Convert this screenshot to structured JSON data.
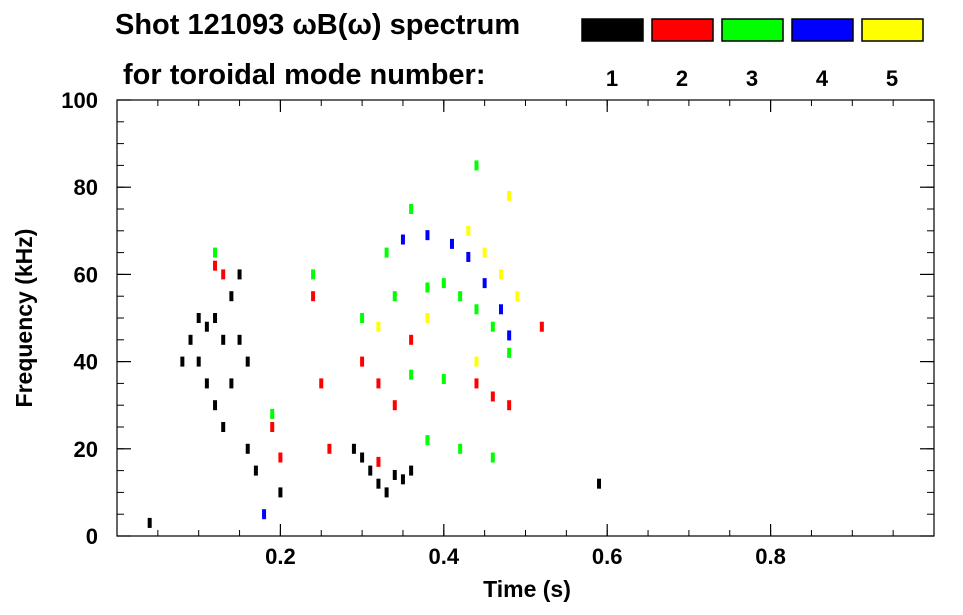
{
  "chart_data": {
    "type": "scatter",
    "title_line1": "Shot 121093 ωB(ω) spectrum",
    "title_line2": "for toroidal mode number:",
    "xlabel": "Time (s)",
    "ylabel": "Frequency (kHz)",
    "xlim": [
      0.0,
      1.0
    ],
    "ylim": [
      0,
      100
    ],
    "x_ticks": [
      {
        "value": 0.2,
        "label": "0.2"
      },
      {
        "value": 0.4,
        "label": "0.4"
      },
      {
        "value": 0.6,
        "label": "0.6"
      },
      {
        "value": 0.8,
        "label": "0.8"
      }
    ],
    "y_ticks": [
      {
        "value": 0,
        "label": "0"
      },
      {
        "value": 20,
        "label": "20"
      },
      {
        "value": 40,
        "label": "40"
      },
      {
        "value": 60,
        "label": "60"
      },
      {
        "value": 80,
        "label": "80"
      },
      {
        "value": 100,
        "label": "100"
      }
    ],
    "legend": {
      "placement": "top-right",
      "entries": [
        {
          "label": "1",
          "color": "#000000"
        },
        {
          "label": "2",
          "color": "#ff0000"
        },
        {
          "label": "3",
          "color": "#00ff00"
        },
        {
          "label": "4",
          "color": "#0000ff"
        },
        {
          "label": "5",
          "color": "#ffff00"
        }
      ]
    },
    "series": [
      {
        "mode": "1",
        "color": "#000000",
        "points": [
          {
            "x": 0.08,
            "y": 40
          },
          {
            "x": 0.09,
            "y": 45
          },
          {
            "x": 0.1,
            "y": 50
          },
          {
            "x": 0.1,
            "y": 40
          },
          {
            "x": 0.11,
            "y": 35
          },
          {
            "x": 0.11,
            "y": 48
          },
          {
            "x": 0.12,
            "y": 30
          },
          {
            "x": 0.12,
            "y": 50
          },
          {
            "x": 0.13,
            "y": 45
          },
          {
            "x": 0.13,
            "y": 25
          },
          {
            "x": 0.14,
            "y": 55
          },
          {
            "x": 0.14,
            "y": 35
          },
          {
            "x": 0.15,
            "y": 60
          },
          {
            "x": 0.15,
            "y": 45
          },
          {
            "x": 0.16,
            "y": 40
          },
          {
            "x": 0.16,
            "y": 20
          },
          {
            "x": 0.17,
            "y": 15
          },
          {
            "x": 0.2,
            "y": 10
          },
          {
            "x": 0.29,
            "y": 20
          },
          {
            "x": 0.3,
            "y": 18
          },
          {
            "x": 0.31,
            "y": 15
          },
          {
            "x": 0.32,
            "y": 12
          },
          {
            "x": 0.33,
            "y": 10
          },
          {
            "x": 0.34,
            "y": 14
          },
          {
            "x": 0.35,
            "y": 13
          },
          {
            "x": 0.36,
            "y": 15
          },
          {
            "x": 0.04,
            "y": 3
          },
          {
            "x": 0.59,
            "y": 12
          }
        ]
      },
      {
        "mode": "2",
        "color": "#ff0000",
        "points": [
          {
            "x": 0.12,
            "y": 62
          },
          {
            "x": 0.13,
            "y": 60
          },
          {
            "x": 0.19,
            "y": 25
          },
          {
            "x": 0.2,
            "y": 18
          },
          {
            "x": 0.24,
            "y": 55
          },
          {
            "x": 0.25,
            "y": 35
          },
          {
            "x": 0.26,
            "y": 20
          },
          {
            "x": 0.3,
            "y": 40
          },
          {
            "x": 0.32,
            "y": 35
          },
          {
            "x": 0.34,
            "y": 30
          },
          {
            "x": 0.36,
            "y": 45
          },
          {
            "x": 0.44,
            "y": 35
          },
          {
            "x": 0.46,
            "y": 32
          },
          {
            "x": 0.48,
            "y": 30
          },
          {
            "x": 0.52,
            "y": 48
          },
          {
            "x": 0.32,
            "y": 17
          }
        ]
      },
      {
        "mode": "3",
        "color": "#00ff00",
        "points": [
          {
            "x": 0.12,
            "y": 65
          },
          {
            "x": 0.19,
            "y": 28
          },
          {
            "x": 0.24,
            "y": 60
          },
          {
            "x": 0.3,
            "y": 50
          },
          {
            "x": 0.34,
            "y": 55
          },
          {
            "x": 0.38,
            "y": 57
          },
          {
            "x": 0.4,
            "y": 58
          },
          {
            "x": 0.42,
            "y": 55
          },
          {
            "x": 0.44,
            "y": 52
          },
          {
            "x": 0.46,
            "y": 48
          },
          {
            "x": 0.48,
            "y": 42
          },
          {
            "x": 0.36,
            "y": 37
          },
          {
            "x": 0.4,
            "y": 36
          },
          {
            "x": 0.38,
            "y": 22
          },
          {
            "x": 0.42,
            "y": 20
          },
          {
            "x": 0.46,
            "y": 18
          },
          {
            "x": 0.33,
            "y": 65
          },
          {
            "x": 0.36,
            "y": 75
          },
          {
            "x": 0.44,
            "y": 85
          }
        ]
      },
      {
        "mode": "4",
        "color": "#0000ff",
        "points": [
          {
            "x": 0.35,
            "y": 68
          },
          {
            "x": 0.38,
            "y": 69
          },
          {
            "x": 0.41,
            "y": 67
          },
          {
            "x": 0.43,
            "y": 64
          },
          {
            "x": 0.45,
            "y": 58
          },
          {
            "x": 0.47,
            "y": 52
          },
          {
            "x": 0.48,
            "y": 46
          },
          {
            "x": 0.18,
            "y": 5
          }
        ]
      },
      {
        "mode": "5",
        "color": "#ffff00",
        "points": [
          {
            "x": 0.43,
            "y": 70
          },
          {
            "x": 0.45,
            "y": 65
          },
          {
            "x": 0.47,
            "y": 60
          },
          {
            "x": 0.49,
            "y": 55
          },
          {
            "x": 0.32,
            "y": 48
          },
          {
            "x": 0.38,
            "y": 50
          },
          {
            "x": 0.44,
            "y": 40
          },
          {
            "x": 0.48,
            "y": 78
          }
        ]
      }
    ]
  }
}
